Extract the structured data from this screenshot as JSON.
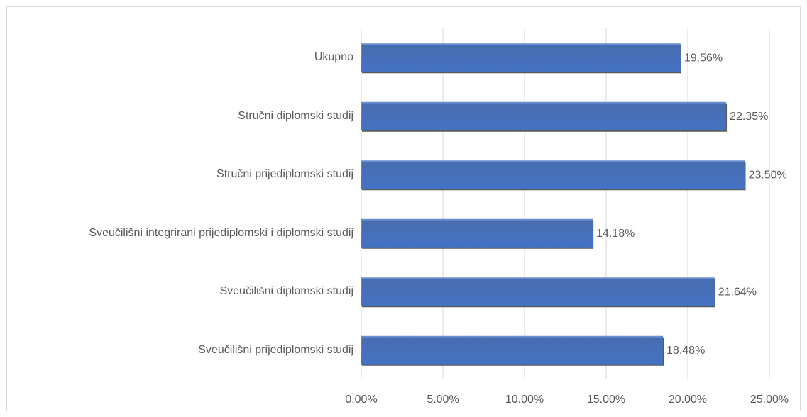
{
  "chart_data": {
    "type": "bar",
    "orientation": "horizontal",
    "categories": [
      "Ukupno",
      "Stručni diplomski studij",
      "Stručni prijediplomski studij",
      "Sveučilišni integrirani prijediplomski i diplomski studij",
      "Sveučilišni diplomski studij",
      "Sveučilišni prijediplomski studij"
    ],
    "values": [
      19.56,
      22.35,
      23.5,
      14.18,
      21.64,
      18.48
    ],
    "value_labels": [
      "19.56%",
      "22.35%",
      "23.50%",
      "14.18%",
      "21.64%",
      "18.48%"
    ],
    "color": "#4472c4",
    "xlim": [
      0,
      25
    ],
    "xticks": [
      {
        "value": 0,
        "label": "0.00%"
      },
      {
        "value": 5,
        "label": "5.00%"
      },
      {
        "value": 10,
        "label": "10.00%"
      },
      {
        "value": 15,
        "label": "15.00%"
      },
      {
        "value": 20,
        "label": "20.00%"
      },
      {
        "value": 25,
        "label": "25.00%"
      }
    ],
    "grid": true
  }
}
